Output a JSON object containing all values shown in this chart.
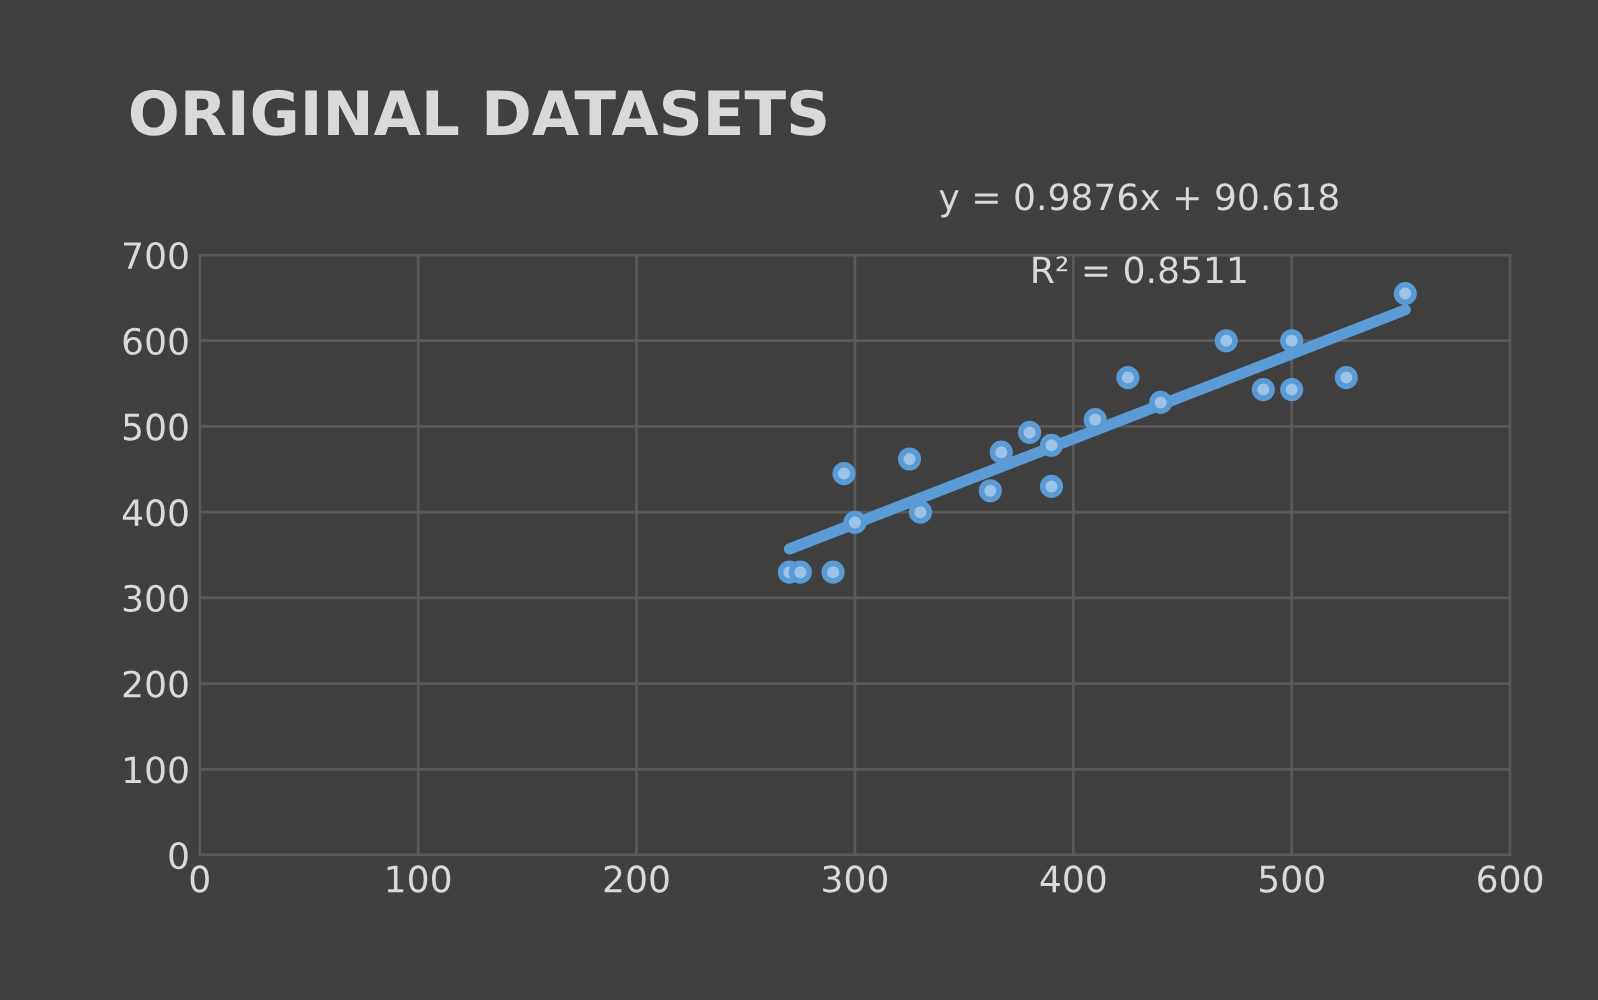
{
  "chart_data": {
    "type": "scatter",
    "title": "ORIGINAL DATASETS",
    "annotations": [
      "y = 0.9876x + 90.618",
      "R² = 0.8511"
    ],
    "xlim": [
      0,
      600
    ],
    "ylim": [
      0,
      700
    ],
    "xticks": [
      0,
      100,
      200,
      300,
      400,
      500,
      600
    ],
    "yticks": [
      0,
      100,
      200,
      300,
      400,
      500,
      600,
      700
    ],
    "grid": true,
    "series": [
      {
        "color": "#9dc3e6",
        "marker": "circle",
        "x": [
          270,
          275,
          290,
          295,
          300,
          325,
          330,
          362,
          367,
          380,
          390,
          390,
          410,
          425,
          440,
          470,
          487,
          500,
          500,
          525,
          552
        ],
        "values": [
          330,
          330,
          330,
          445,
          388,
          462,
          400,
          425,
          470,
          493,
          478,
          430,
          508,
          557,
          528,
          600,
          543,
          543,
          600,
          557,
          655
        ]
      },
      {
        "type": "line",
        "color": "#5b9bd5",
        "x": [
          270,
          552
        ],
        "values": [
          357,
          636
        ]
      }
    ]
  }
}
